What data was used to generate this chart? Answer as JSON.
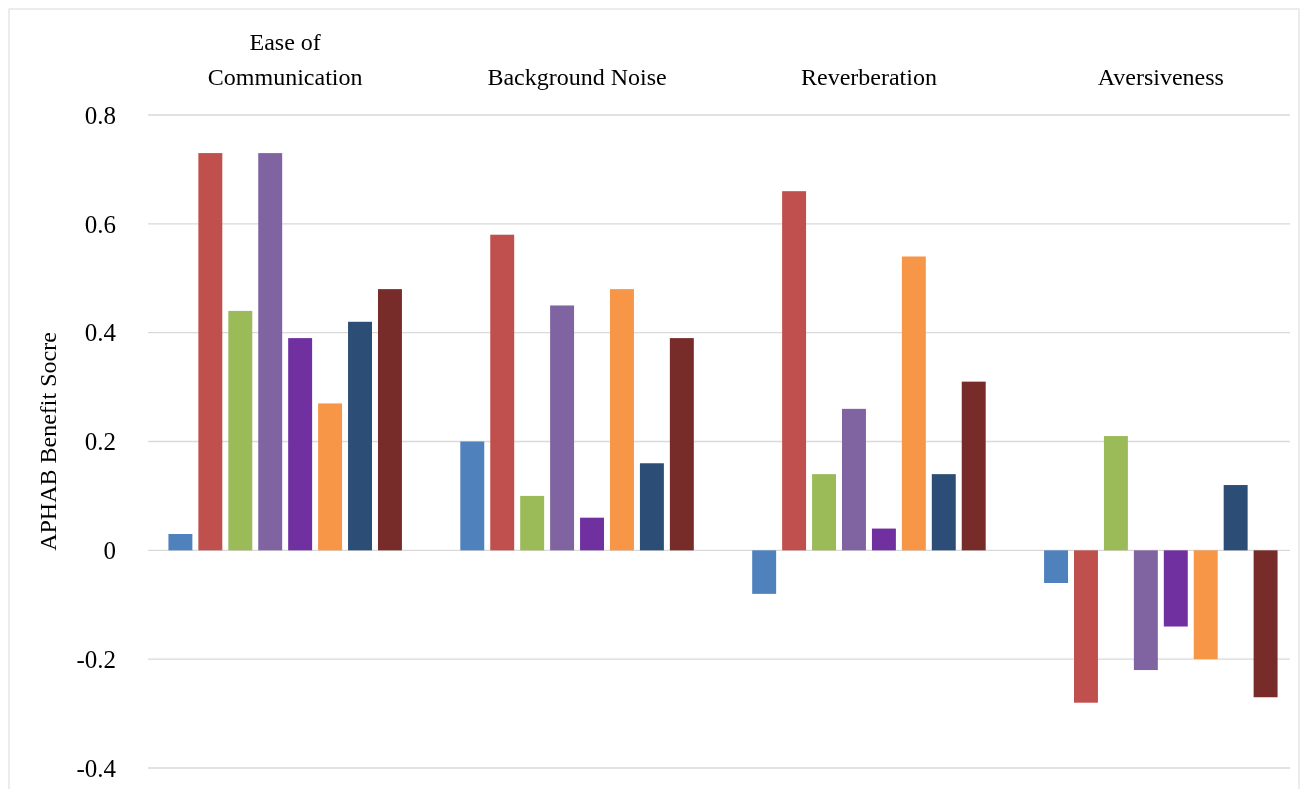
{
  "chart_data": {
    "type": "bar",
    "ylabel": "APHAB Benefit Socre",
    "categories": [
      "Ease of Communication",
      "Background Noise",
      "Reverberation",
      "Aversiveness"
    ],
    "series": [
      {
        "color": "#4f81bd",
        "values": [
          0.03,
          0.2,
          -0.08,
          -0.06
        ]
      },
      {
        "color": "#c0504d",
        "values": [
          0.73,
          0.58,
          0.66,
          -0.28
        ]
      },
      {
        "color": "#9bbb59",
        "values": [
          0.44,
          0.1,
          0.14,
          0.21
        ]
      },
      {
        "color": "#8064a2",
        "values": [
          0.73,
          0.45,
          0.26,
          -0.22
        ]
      },
      {
        "color": "#7030a0",
        "values": [
          0.39,
          0.06,
          0.04,
          -0.14
        ]
      },
      {
        "color": "#f79646",
        "values": [
          0.27,
          0.48,
          0.54,
          -0.2
        ]
      },
      {
        "color": "#2c4d75",
        "values": [
          0.42,
          0.16,
          0.14,
          0.12
        ]
      },
      {
        "color": "#772c2a",
        "values": [
          0.48,
          0.39,
          0.31,
          -0.27
        ]
      }
    ],
    "ylim": [
      -0.4,
      0.8
    ],
    "yticks": [
      -0.4,
      -0.2,
      0,
      0.2,
      0.4,
      0.6,
      0.8
    ],
    "grid": "y"
  }
}
